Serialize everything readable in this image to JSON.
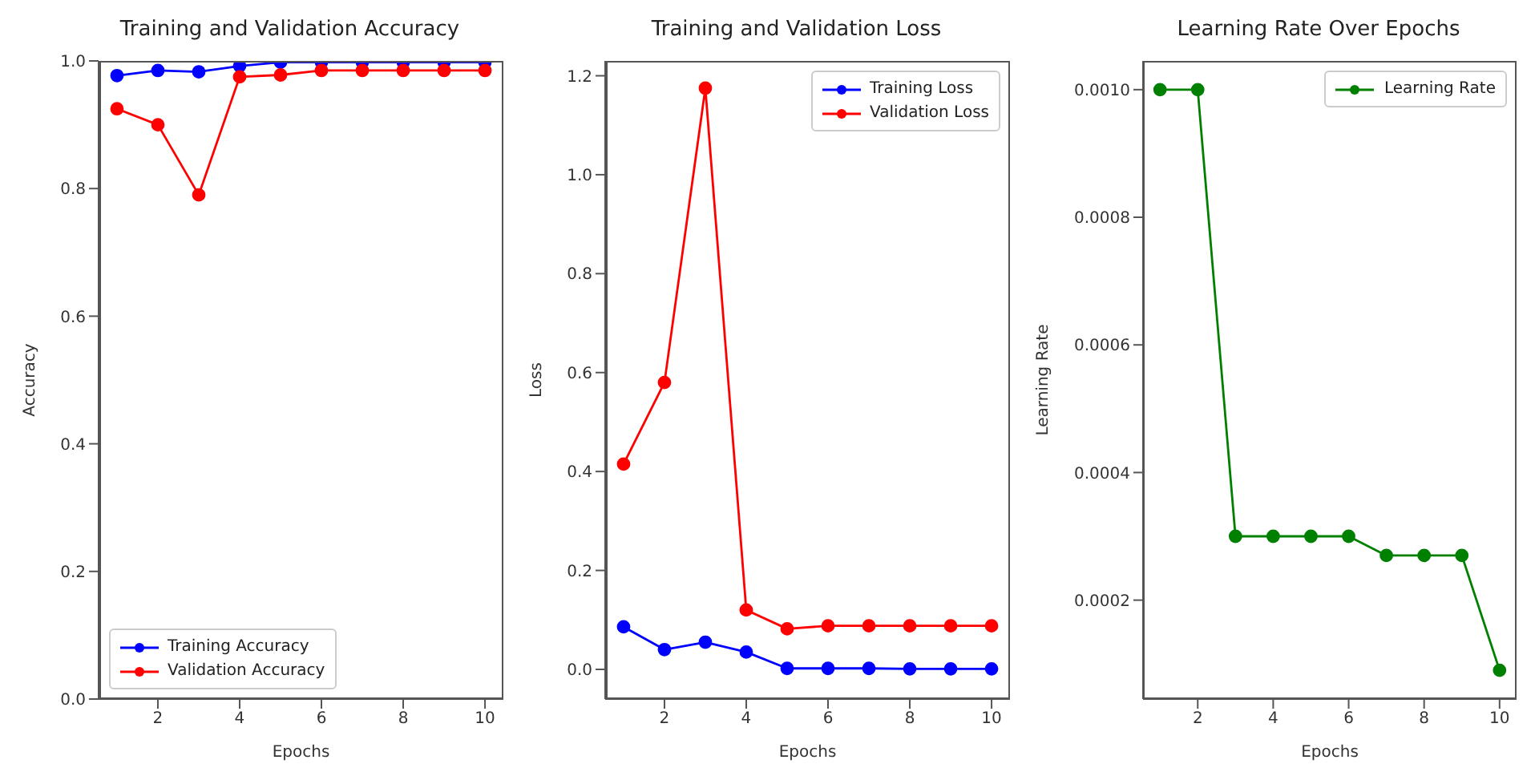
{
  "chart_data": [
    {
      "type": "line",
      "title": "Training and Validation Accuracy",
      "xlabel": "Epochs",
      "ylabel": "Accuracy",
      "x": [
        1,
        2,
        3,
        4,
        5,
        6,
        7,
        8,
        9,
        10
      ],
      "xlim": [
        0.55,
        10.45
      ],
      "xticks": [
        2,
        4,
        6,
        8,
        10
      ],
      "ylim": [
        0,
        1.0
      ],
      "yticks": [
        {
          "value": 0,
          "label": "0.0"
        },
        {
          "value": 0.2,
          "label": "0.2"
        },
        {
          "value": 0.4,
          "label": "0.4"
        },
        {
          "value": 0.6,
          "label": "0.6"
        },
        {
          "value": 0.8,
          "label": "0.8"
        },
        {
          "value": 1.0,
          "label": "1.0"
        }
      ],
      "marker": "circle",
      "grid": false,
      "legend": "bottom left",
      "series": [
        {
          "name": "Training Accuracy",
          "color": "#0000ff",
          "values": [
            0.977,
            0.985,
            0.983,
            0.992,
            0.998,
            0.998,
            0.998,
            0.998,
            0.998,
            0.998
          ]
        },
        {
          "name": "Validation Accuracy",
          "color": "#ff0000",
          "values": [
            0.925,
            0.9,
            0.79,
            0.975,
            0.978,
            0.985,
            0.985,
            0.985,
            0.985,
            0.985
          ]
        }
      ]
    },
    {
      "type": "line",
      "title": "Training and Validation Loss",
      "xlabel": "Epochs",
      "ylabel": "Loss",
      "x": [
        1,
        2,
        3,
        4,
        5,
        6,
        7,
        8,
        9,
        10
      ],
      "xlim": [
        0.55,
        10.45
      ],
      "xticks": [
        2,
        4,
        6,
        8,
        10
      ],
      "ylim": [
        -0.06,
        1.23
      ],
      "yticks": [
        {
          "value": 0,
          "label": "0.0"
        },
        {
          "value": 0.2,
          "label": "0.2"
        },
        {
          "value": 0.4,
          "label": "0.4"
        },
        {
          "value": 0.6,
          "label": "0.6"
        },
        {
          "value": 0.8,
          "label": "0.8"
        },
        {
          "value": 1.0,
          "label": "1.0"
        },
        {
          "value": 1.2,
          "label": "1.2"
        }
      ],
      "marker": "circle",
      "grid": false,
      "legend": "top right",
      "series": [
        {
          "name": "Training Loss",
          "color": "#0000ff",
          "values": [
            0.086,
            0.04,
            0.055,
            0.035,
            0.002,
            0.002,
            0.002,
            0.001,
            0.001,
            0.001
          ]
        },
        {
          "name": "Validation Loss",
          "color": "#ff0000",
          "values": [
            0.415,
            0.58,
            1.175,
            0.12,
            0.082,
            0.088,
            0.088,
            0.088,
            0.088,
            0.088
          ]
        }
      ]
    },
    {
      "type": "line",
      "title": "Learning Rate Over Epochs",
      "xlabel": "Epochs",
      "ylabel": "Learning Rate",
      "x": [
        1,
        2,
        3,
        4,
        5,
        6,
        7,
        8,
        9,
        10
      ],
      "xlim": [
        0.55,
        10.45
      ],
      "xticks": [
        2,
        4,
        6,
        8,
        10
      ],
      "ylim": [
        4.5e-05,
        0.001045
      ],
      "yticks": [
        {
          "value": 0.0002,
          "label": "0.0002"
        },
        {
          "value": 0.0004,
          "label": "0.0004"
        },
        {
          "value": 0.0006,
          "label": "0.0006"
        },
        {
          "value": 0.0008,
          "label": "0.0008"
        },
        {
          "value": 0.001,
          "label": "0.0010"
        }
      ],
      "marker": "circle",
      "grid": false,
      "legend": "top right",
      "series": [
        {
          "name": "Learning Rate",
          "color": "#008000",
          "values": [
            0.001,
            0.001,
            0.0003,
            0.0003,
            0.0003,
            0.0003,
            0.00027,
            0.00027,
            0.00027,
            9e-05
          ]
        }
      ]
    }
  ]
}
